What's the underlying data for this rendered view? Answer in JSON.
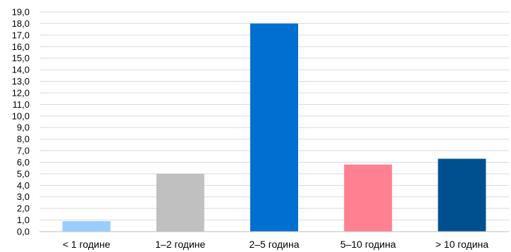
{
  "chart_data": {
    "type": "bar",
    "title": "",
    "xlabel": "",
    "ylabel": "",
    "categories": [
      "< 1 године",
      "1–2 године",
      "2–5 година",
      "5–10 година",
      "> 10 година"
    ],
    "values": [
      0.9,
      5.0,
      18.0,
      5.8,
      6.3
    ],
    "colors": [
      "#99ccff",
      "#c0c0c0",
      "#0070d0",
      "#ff8090",
      "#005090"
    ],
    "ylim": [
      0,
      19
    ],
    "ytick_step": 1,
    "ytick_labels": [
      "0,0",
      "1,0",
      "2,0",
      "3,0",
      "4,0",
      "5,0",
      "6,0",
      "7,0",
      "8,0",
      "9,0",
      "10,0",
      "11,0",
      "12,0",
      "13,0",
      "14,0",
      "15,0",
      "16,0",
      "17,0",
      "18,0",
      "19,0"
    ],
    "grid": true,
    "gridline_color": "#d9d9d9",
    "legend": "none"
  }
}
